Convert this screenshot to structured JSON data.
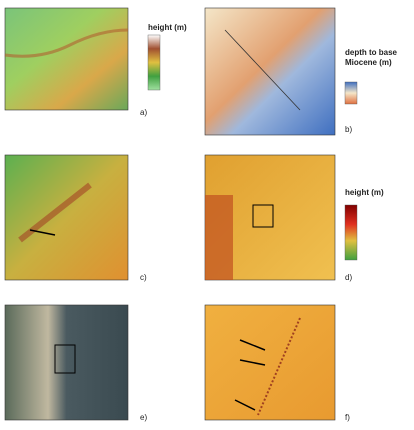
{
  "panels": [
    {
      "label": "a)"
    },
    {
      "label": "b)"
    },
    {
      "label": "c)"
    },
    {
      "label": "d)"
    },
    {
      "label": "e)"
    },
    {
      "label": "f)"
    }
  ],
  "legends": [
    {
      "title": "height (m)"
    },
    {
      "title": "depth to base Miocene (m)"
    },
    {
      "title": "height (m)"
    }
  ]
}
